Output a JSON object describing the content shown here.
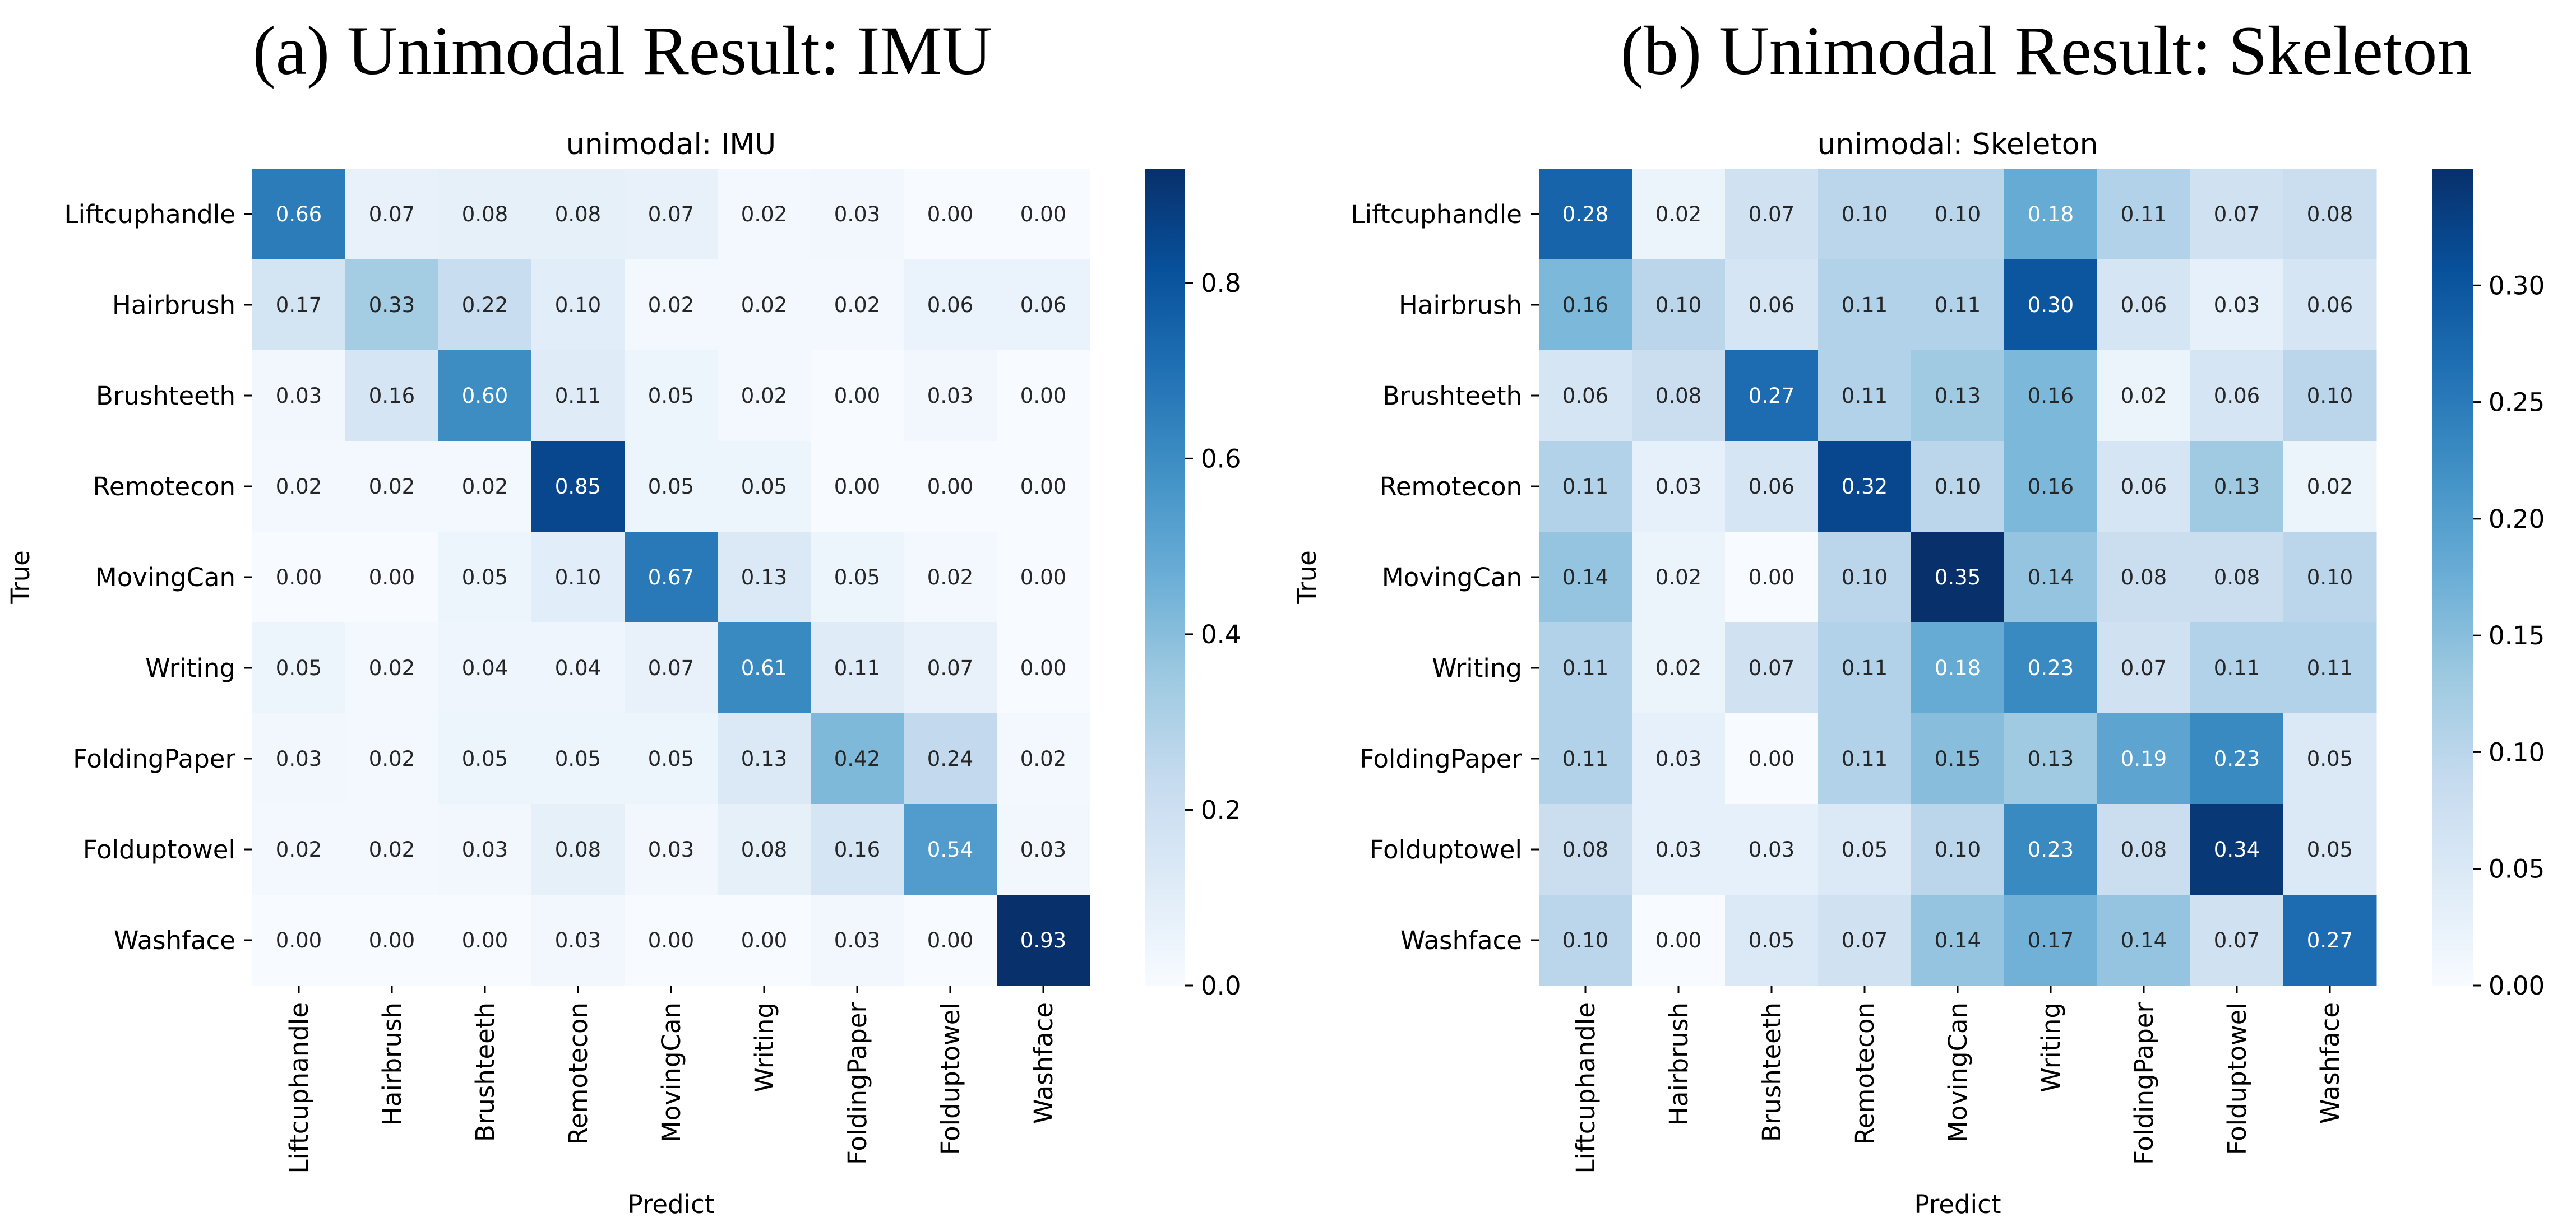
{
  "figure_titles": {
    "left": "(a) Unimodal Result: IMU",
    "right": "(b) Unimodal Result: Skeleton"
  },
  "chart_data": [
    {
      "type": "heatmap",
      "title": "unimodal: IMU",
      "xlabel": "Predict",
      "ylabel": "True",
      "colormap": "Blues",
      "vmin": 0.0,
      "vmax": 0.93,
      "colorbar_ticks": [
        "0.0",
        "0.2",
        "0.4",
        "0.6",
        "0.8"
      ],
      "colorbar_tick_values": [
        0.0,
        0.2,
        0.4,
        0.6,
        0.8
      ],
      "categories": [
        "Liftcuphandle",
        "Hairbrush",
        "Brushteeth",
        "Remotecon",
        "MovingCan",
        "Writing",
        "FoldingPaper",
        "Folduptowel",
        "Washface"
      ],
      "values": [
        [
          0.66,
          0.07,
          0.08,
          0.08,
          0.07,
          0.02,
          0.03,
          0.0,
          0.0
        ],
        [
          0.17,
          0.33,
          0.22,
          0.1,
          0.02,
          0.02,
          0.02,
          0.06,
          0.06
        ],
        [
          0.03,
          0.16,
          0.6,
          0.11,
          0.05,
          0.02,
          0.0,
          0.03,
          0.0
        ],
        [
          0.02,
          0.02,
          0.02,
          0.85,
          0.05,
          0.05,
          0.0,
          0.0,
          0.0
        ],
        [
          0.0,
          0.0,
          0.05,
          0.1,
          0.67,
          0.13,
          0.05,
          0.02,
          0.0
        ],
        [
          0.05,
          0.02,
          0.04,
          0.04,
          0.07,
          0.61,
          0.11,
          0.07,
          0.0
        ],
        [
          0.03,
          0.02,
          0.05,
          0.05,
          0.05,
          0.13,
          0.42,
          0.24,
          0.02
        ],
        [
          0.02,
          0.02,
          0.03,
          0.08,
          0.03,
          0.08,
          0.16,
          0.54,
          0.03
        ],
        [
          0.0,
          0.0,
          0.0,
          0.03,
          0.0,
          0.0,
          0.03,
          0.0,
          0.93
        ]
      ]
    },
    {
      "type": "heatmap",
      "title": "unimodal: Skeleton",
      "xlabel": "Predict",
      "ylabel": "True",
      "colormap": "Blues",
      "vmin": 0.0,
      "vmax": 0.35,
      "colorbar_ticks": [
        "0.00",
        "0.05",
        "0.10",
        "0.15",
        "0.20",
        "0.25",
        "0.30"
      ],
      "colorbar_tick_values": [
        0.0,
        0.05,
        0.1,
        0.15,
        0.2,
        0.25,
        0.3
      ],
      "categories": [
        "Liftcuphandle",
        "Hairbrush",
        "Brushteeth",
        "Remotecon",
        "MovingCan",
        "Writing",
        "FoldingPaper",
        "Folduptowel",
        "Washface"
      ],
      "values": [
        [
          0.28,
          0.02,
          0.07,
          0.1,
          0.1,
          0.18,
          0.11,
          0.07,
          0.08
        ],
        [
          0.16,
          0.1,
          0.06,
          0.11,
          0.11,
          0.3,
          0.06,
          0.03,
          0.06
        ],
        [
          0.06,
          0.08,
          0.27,
          0.11,
          0.13,
          0.16,
          0.02,
          0.06,
          0.1
        ],
        [
          0.11,
          0.03,
          0.06,
          0.32,
          0.1,
          0.16,
          0.06,
          0.13,
          0.02
        ],
        [
          0.14,
          0.02,
          0.0,
          0.1,
          0.35,
          0.14,
          0.08,
          0.08,
          0.1
        ],
        [
          0.11,
          0.02,
          0.07,
          0.11,
          0.18,
          0.23,
          0.07,
          0.11,
          0.11
        ],
        [
          0.11,
          0.03,
          0.0,
          0.11,
          0.15,
          0.13,
          0.19,
          0.23,
          0.05
        ],
        [
          0.08,
          0.03,
          0.03,
          0.05,
          0.1,
          0.23,
          0.08,
          0.34,
          0.05
        ],
        [
          0.1,
          0.0,
          0.05,
          0.07,
          0.14,
          0.17,
          0.14,
          0.07,
          0.27
        ]
      ]
    }
  ]
}
